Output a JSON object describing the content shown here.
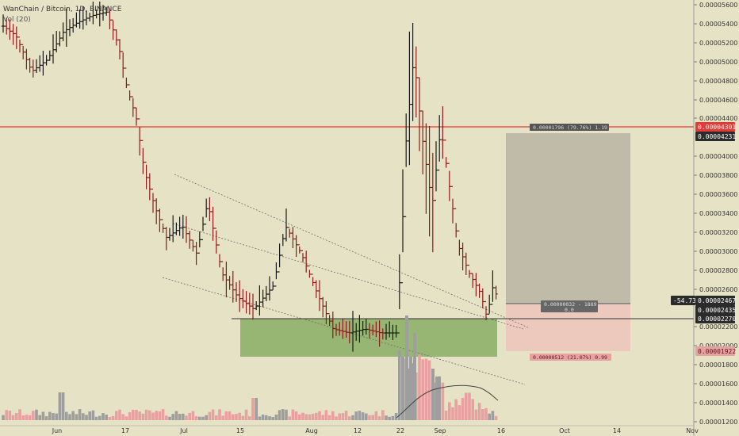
{
  "legend": {
    "symbol": "WanChain / Bitcoin, 1D, BINANCE",
    "volume": "Vol (20)"
  },
  "colors": {
    "background": "#e6e2c6",
    "up_bar": "#1a1a1a",
    "down_bar": "#8b1a1a",
    "resistance_line": "#e53935",
    "support_zone": "#8fb169",
    "profit_zone": "#bfbba8",
    "loss_zone": "#edc9bd",
    "volume_up": "#9e9e9e",
    "volume_down": "#e8a0a0",
    "channel_line": "#6e6e6e"
  },
  "price_axis": {
    "ticks": [
      "0.00005600",
      "0.00005400",
      "0.00005200",
      "0.00005000",
      "0.00004800",
      "0.00004600",
      "0.00004400",
      "0.00004000",
      "0.00003800",
      "0.00003600",
      "0.00003400",
      "0.00003200",
      "0.00003000",
      "0.00002800",
      "0.00002600",
      "0.00002200",
      "0.00002000",
      "0.00001800",
      "0.00001600",
      "0.00001400",
      "0.00001200"
    ],
    "tags": [
      {
        "label": "0.00004301",
        "kind": "red"
      },
      {
        "label": "0.00004231",
        "kind": "dark"
      },
      {
        "label": "-54.73%",
        "kind": "dark"
      },
      {
        "label": "0.00002467",
        "kind": "dark"
      },
      {
        "label": "0.00002435",
        "kind": "dark"
      },
      {
        "label": "0.00002270",
        "kind": "dark"
      },
      {
        "label": "0.00001922",
        "kind": "pink"
      }
    ]
  },
  "time_axis": [
    "Jun",
    "17",
    "Jul",
    "15",
    "Aug",
    "12",
    "22",
    "Sep",
    "16",
    "Oct",
    "14",
    "Nov"
  ],
  "position_tool": {
    "target_text": "0.00001796 (79.76%) 1.19",
    "entry_text": "0.00000032 - 1889",
    "entry_sub": "0.0",
    "stop_text": "0.00000512 (21.07%) 0.99"
  }
}
